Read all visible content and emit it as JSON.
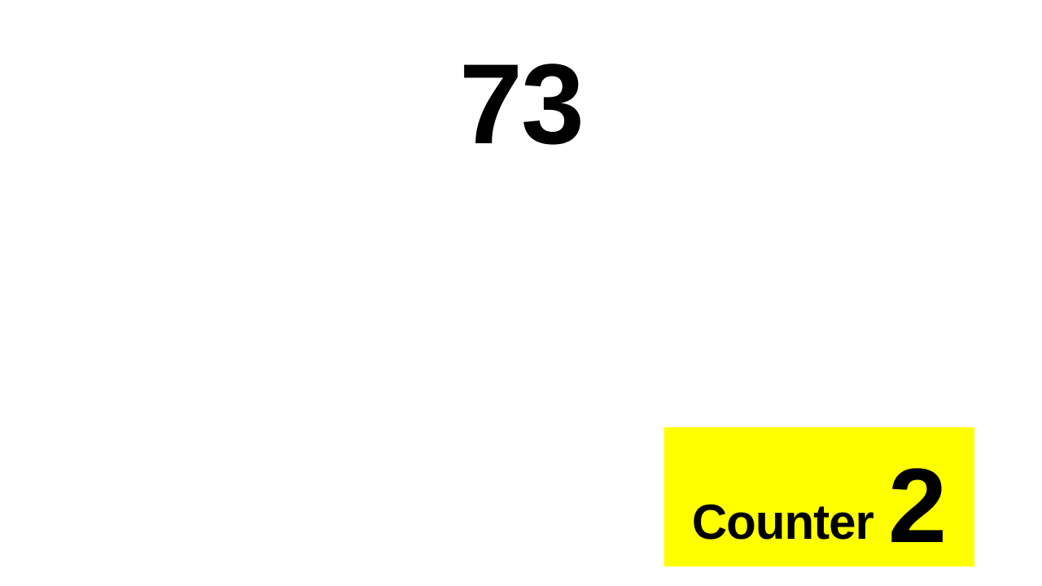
{
  "display": {
    "current_number": "73"
  },
  "counter": {
    "label": "Counter",
    "number": "2",
    "background_color": "#ffff00",
    "text_color": "#000000"
  }
}
